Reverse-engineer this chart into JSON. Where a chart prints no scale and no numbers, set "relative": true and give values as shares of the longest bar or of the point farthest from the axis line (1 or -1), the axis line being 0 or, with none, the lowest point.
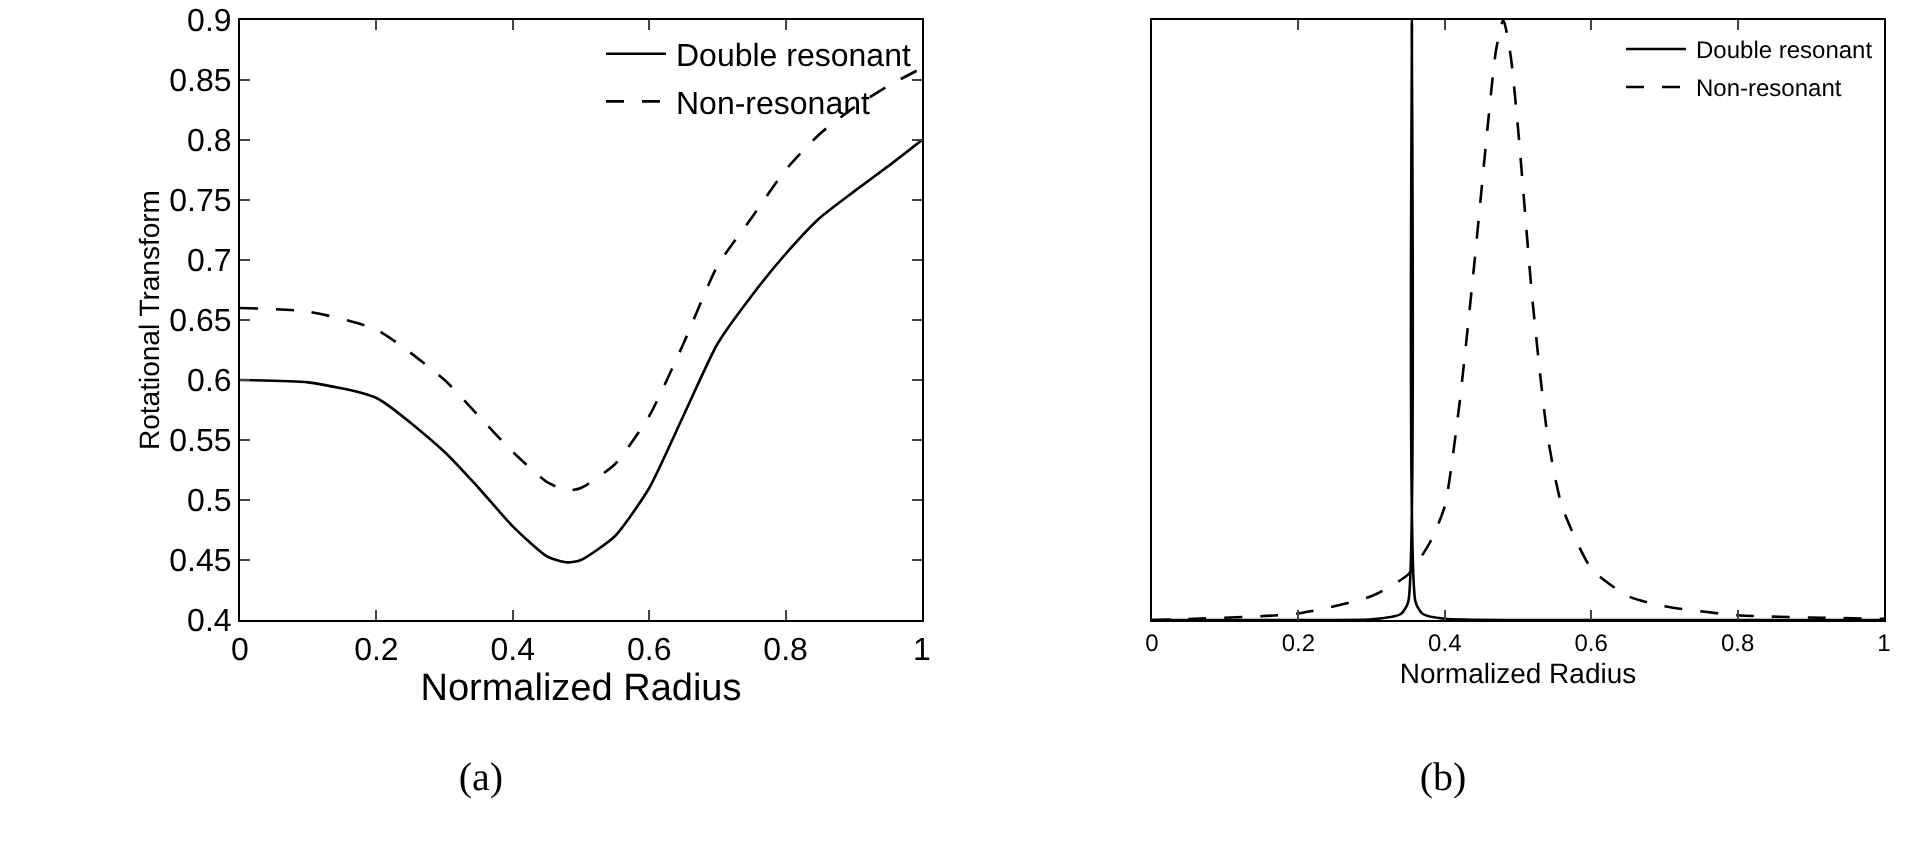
{
  "chart_data": [
    {
      "type": "line",
      "xlabel": "Normalized Radius",
      "ylabel": "Rotational Transform",
      "annotations": [
        "(a)"
      ],
      "xlim": [
        0,
        1
      ],
      "xticks": [
        0,
        0.2,
        0.4,
        0.6,
        0.8,
        1
      ],
      "ylim": [
        0.4,
        0.9
      ],
      "yticks": [
        0.4,
        0.45,
        0.5,
        0.55,
        0.6,
        0.65,
        0.7,
        0.75,
        0.8,
        0.85,
        0.9
      ],
      "grid": false,
      "legend": "top right",
      "marker": "none",
      "series": [
        {
          "name": "Double resonant",
          "color": "#000000",
          "line_style": "solid",
          "x": [
            0,
            0.1,
            0.2,
            0.3,
            0.35,
            0.4,
            0.45,
            0.48,
            0.5,
            0.55,
            0.6,
            0.65,
            0.7,
            0.75,
            0.8,
            0.85,
            0.9,
            0.95,
            1
          ],
          "values": [
            0.6,
            0.598,
            0.585,
            0.54,
            0.51,
            0.478,
            0.453,
            0.448,
            0.45,
            0.47,
            0.51,
            0.57,
            0.63,
            0.67,
            0.705,
            0.735,
            0.757,
            0.778,
            0.8
          ]
        },
        {
          "name": "Non-resonant",
          "color": "#000000",
          "line_style": "dashed",
          "x": [
            0,
            0.1,
            0.2,
            0.3,
            0.35,
            0.4,
            0.45,
            0.48,
            0.5,
            0.55,
            0.6,
            0.65,
            0.7,
            0.75,
            0.8,
            0.85,
            0.9,
            0.95,
            1
          ],
          "values": [
            0.66,
            0.657,
            0.642,
            0.6,
            0.57,
            0.54,
            0.515,
            0.508,
            0.51,
            0.53,
            0.57,
            0.63,
            0.695,
            0.735,
            0.775,
            0.805,
            0.827,
            0.845,
            0.86
          ]
        }
      ]
    },
    {
      "type": "line",
      "xlabel": "Normalized Radius",
      "annotations": [
        "(b)"
      ],
      "relative": true,
      "xlim": [
        0,
        1
      ],
      "xticks": [
        0,
        0.2,
        0.4,
        0.6,
        0.8,
        1
      ],
      "grid": false,
      "legend": "top right",
      "marker": "none",
      "series": [
        {
          "name": "Double resonant",
          "color": "#000000",
          "line_style": "solid",
          "x": [
            0,
            0.2,
            0.3,
            0.34,
            0.35,
            0.355,
            0.36,
            0.37,
            0.4,
            0.5,
            0.6,
            0.8,
            1
          ],
          "values": [
            0,
            0,
            0.001,
            0.01,
            0.03,
            1,
            0.03,
            0.01,
            0.002,
            0,
            0,
            0,
            0
          ]
        },
        {
          "name": "Non-resonant",
          "color": "#000000",
          "line_style": "dashed",
          "x": [
            0,
            0.2,
            0.3,
            0.35,
            0.38,
            0.4,
            0.42,
            0.44,
            0.46,
            0.47,
            0.48,
            0.49,
            0.5,
            0.52,
            0.54,
            0.56,
            0.6,
            0.65,
            0.7,
            0.8,
            1
          ],
          "values": [
            0,
            0.011,
            0.04,
            0.076,
            0.13,
            0.19,
            0.36,
            0.59,
            0.84,
            0.95,
            1,
            0.94,
            0.82,
            0.53,
            0.31,
            0.19,
            0.086,
            0.04,
            0.023,
            0.008,
            0.002
          ]
        }
      ]
    }
  ]
}
